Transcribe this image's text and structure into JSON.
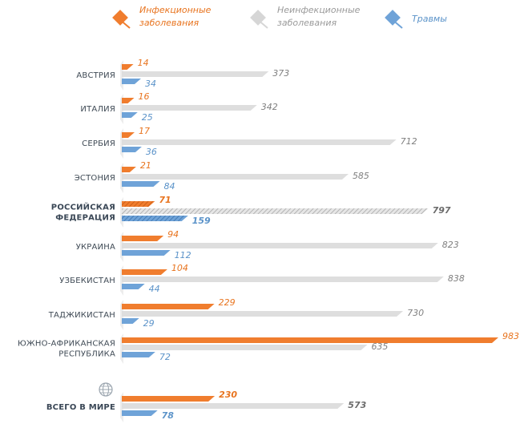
{
  "colors": {
    "infectious": "#f07d2e",
    "infectious_label": "#e8741f",
    "noninfectious": "#dedede",
    "noninfectious_label": "#808080",
    "injuries": "#6fa3d8",
    "injuries_label": "#5b93c9",
    "category_text": "#3f4a55",
    "highlight_text": "#6b6b6b"
  },
  "icons": {
    "world": "globe-icon"
  },
  "chart_data": {
    "type": "bar",
    "orientation": "horizontal",
    "title": "",
    "xlabel": "",
    "ylabel": "",
    "xlim": [
      0,
      983
    ],
    "grid": false,
    "legend_position": "top",
    "legend": [
      {
        "series": "infectious",
        "lines": [
          "Инфекционные",
          "заболевания"
        ]
      },
      {
        "series": "noninfectious",
        "lines": [
          "Неинфекционные",
          "заболевания"
        ]
      },
      {
        "series": "injuries",
        "lines": [
          "Травмы"
        ]
      }
    ],
    "categories": [
      {
        "lines": [
          "АВСТРИЯ"
        ],
        "highlight": false
      },
      {
        "lines": [
          "ИТАЛИЯ"
        ],
        "highlight": false
      },
      {
        "lines": [
          "СЕРБИЯ"
        ],
        "highlight": false
      },
      {
        "lines": [
          "ЭСТОНИЯ"
        ],
        "highlight": false
      },
      {
        "lines": [
          "РОССИЙСКАЯ",
          "ФЕДЕРАЦИЯ"
        ],
        "highlight": true
      },
      {
        "lines": [
          "УКРАИНА"
        ],
        "highlight": false
      },
      {
        "lines": [
          "УЗБЕКИСТАН"
        ],
        "highlight": false
      },
      {
        "lines": [
          "ТАДЖИКИСТАН"
        ],
        "highlight": false
      },
      {
        "lines": [
          "ЮЖНО-АФРИКАНСКАЯ",
          "РЕСПУБЛИКА"
        ],
        "highlight": false
      },
      {
        "lines": [
          "ВСЕГО В МИРЕ"
        ],
        "highlight": true,
        "world": true
      }
    ],
    "series": [
      {
        "key": "infectious",
        "values": [
          14,
          16,
          17,
          21,
          71,
          94,
          104,
          229,
          983,
          230
        ]
      },
      {
        "key": "noninfectious",
        "values": [
          373,
          342,
          712,
          585,
          797,
          823,
          838,
          730,
          635,
          573
        ]
      },
      {
        "key": "injuries",
        "values": [
          34,
          25,
          36,
          84,
          159,
          112,
          44,
          29,
          72,
          78
        ]
      }
    ]
  }
}
